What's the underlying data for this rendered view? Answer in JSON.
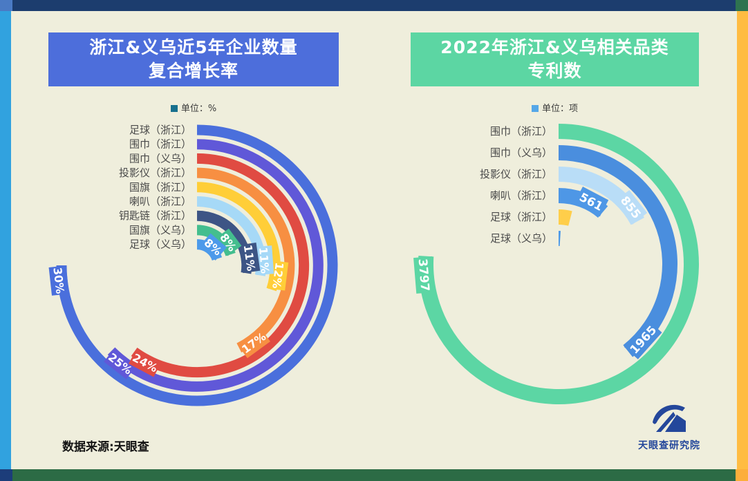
{
  "page": {
    "background": "#EFEEDC"
  },
  "frame": {
    "top": "#1C3D6E",
    "left": "#31A2DF",
    "right": "#FFBC42",
    "bottom": "#2C6B45",
    "corner_top_left": "#4A7AC4",
    "corner_top_right": "#2E7350",
    "corner_bottom_left": "#1C3D7A",
    "corner_bottom_right": "#FCAE3B"
  },
  "charts": [
    {
      "title_line1": "浙江&义乌近5年企业数量",
      "title_line2": "复合增长率",
      "title_bg": "#4D6EDB",
      "title_color": "#FFFFFF",
      "unit_label": "单位：%",
      "unit_square_color": "#17708E"
    },
    {
      "title_line1": "2022年浙江&义乌相关品类",
      "title_line2": "专利数",
      "title_bg": "#5CD6A3",
      "title_color": "#FFFFFF",
      "unit_label": "单位：项",
      "unit_square_color": "#55A7E8"
    }
  ],
  "chart_data": [
    {
      "type": "radial_bar",
      "title": "浙江&义乌近5年企业数量复合增长率",
      "unit": "%",
      "max": 40,
      "start_angle_deg": 0,
      "sweep_direction": "clockwise",
      "categories": [
        "足球（浙江）",
        "围巾（浙江）",
        "围巾（义乌）",
        "投影仪（浙江）",
        "国旗（浙江）",
        "喇叭（浙江）",
        "钥匙链（浙江）",
        "国旗（义乌）",
        "足球（义乌）"
      ],
      "values": [
        30,
        25,
        24,
        17,
        12,
        11,
        11,
        8,
        8
      ],
      "labels": [
        "30%",
        "25%",
        "24%",
        "17%",
        "12%",
        "11%",
        "11%",
        "8%",
        "8%"
      ],
      "colors": [
        "#4A6FDC",
        "#6058D8",
        "#E04B42",
        "#F78F42",
        "#FFCE38",
        "#A6D9F7",
        "#3D5585",
        "#44BE8E",
        "#4C9AEA"
      ]
    },
    {
      "type": "radial_bar",
      "title": "2022年浙江&义乌相关品类专利数",
      "unit": "项",
      "max": 5000,
      "start_angle_deg": 0,
      "sweep_direction": "clockwise",
      "categories": [
        "围巾（浙江）",
        "围巾（义乌）",
        "投影仪（浙江）",
        "喇叭（浙江）",
        "足球（浙江）",
        "足球（义乌）"
      ],
      "values": [
        3797,
        1965,
        855,
        561,
        200,
        50
      ],
      "labels": [
        "3797",
        "1965",
        "855",
        "561",
        "",
        ""
      ],
      "colors": [
        "#5CD6A4",
        "#4A8EDE",
        "#B9DDF7",
        "#4E97E6",
        "#FFCE4A",
        "#4E9AE8"
      ]
    }
  ],
  "source_note": "数据来源:天眼查",
  "logo": {
    "text": "天眼查研究院",
    "color": "#24479B"
  }
}
